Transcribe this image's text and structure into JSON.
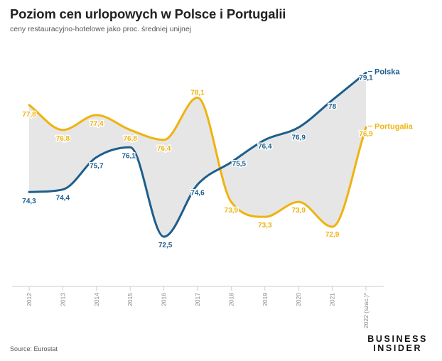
{
  "header": {
    "title": "Poziom cen urlopowych w Polsce i Portugalii",
    "subtitle": "ceny restauracyjno-hotelowe jako proc. średniej unijnej"
  },
  "footer": {
    "source": "Source: Eurostat",
    "logo_line1": "BUSINESS",
    "logo_line2": "INSIDER"
  },
  "colors": {
    "polska": "#1d5e8c",
    "portugalia": "#efb30f",
    "fill": "#e6e6e6"
  },
  "chart_data": {
    "type": "line",
    "title": "Poziom cen urlopowych w Polsce i Portugalii",
    "xlabel": "",
    "ylabel": "",
    "categories": [
      "2012",
      "2013",
      "2014",
      "2015",
      "2016",
      "2017",
      "2018",
      "2019",
      "2020",
      "2021",
      "2022 (szac.)*"
    ],
    "series": [
      {
        "name": "Polska",
        "values": [
          74.3,
          74.4,
          75.7,
          76.1,
          72.5,
          74.6,
          75.5,
          76.4,
          76.9,
          78,
          79.1
        ],
        "labels": [
          "74,3",
          "74,4",
          "75,7",
          "76,1",
          "72,5",
          "74,6",
          "75,5",
          "76,4",
          "76,9",
          "78",
          "79,1"
        ]
      },
      {
        "name": "Portugalia",
        "values": [
          77.8,
          76.8,
          77.4,
          76.8,
          76.4,
          78.1,
          73.9,
          73.3,
          73.9,
          72.9,
          76.9
        ],
        "labels": [
          "77,8",
          "76,8",
          "77,4",
          "76,8",
          "76,4",
          "78,1",
          "73,9",
          "73,3",
          "73,9",
          "72,9",
          "76,9"
        ]
      }
    ],
    "ylim": [
      70.5,
      80
    ],
    "grid": false,
    "legend": "inline labels at right end"
  }
}
